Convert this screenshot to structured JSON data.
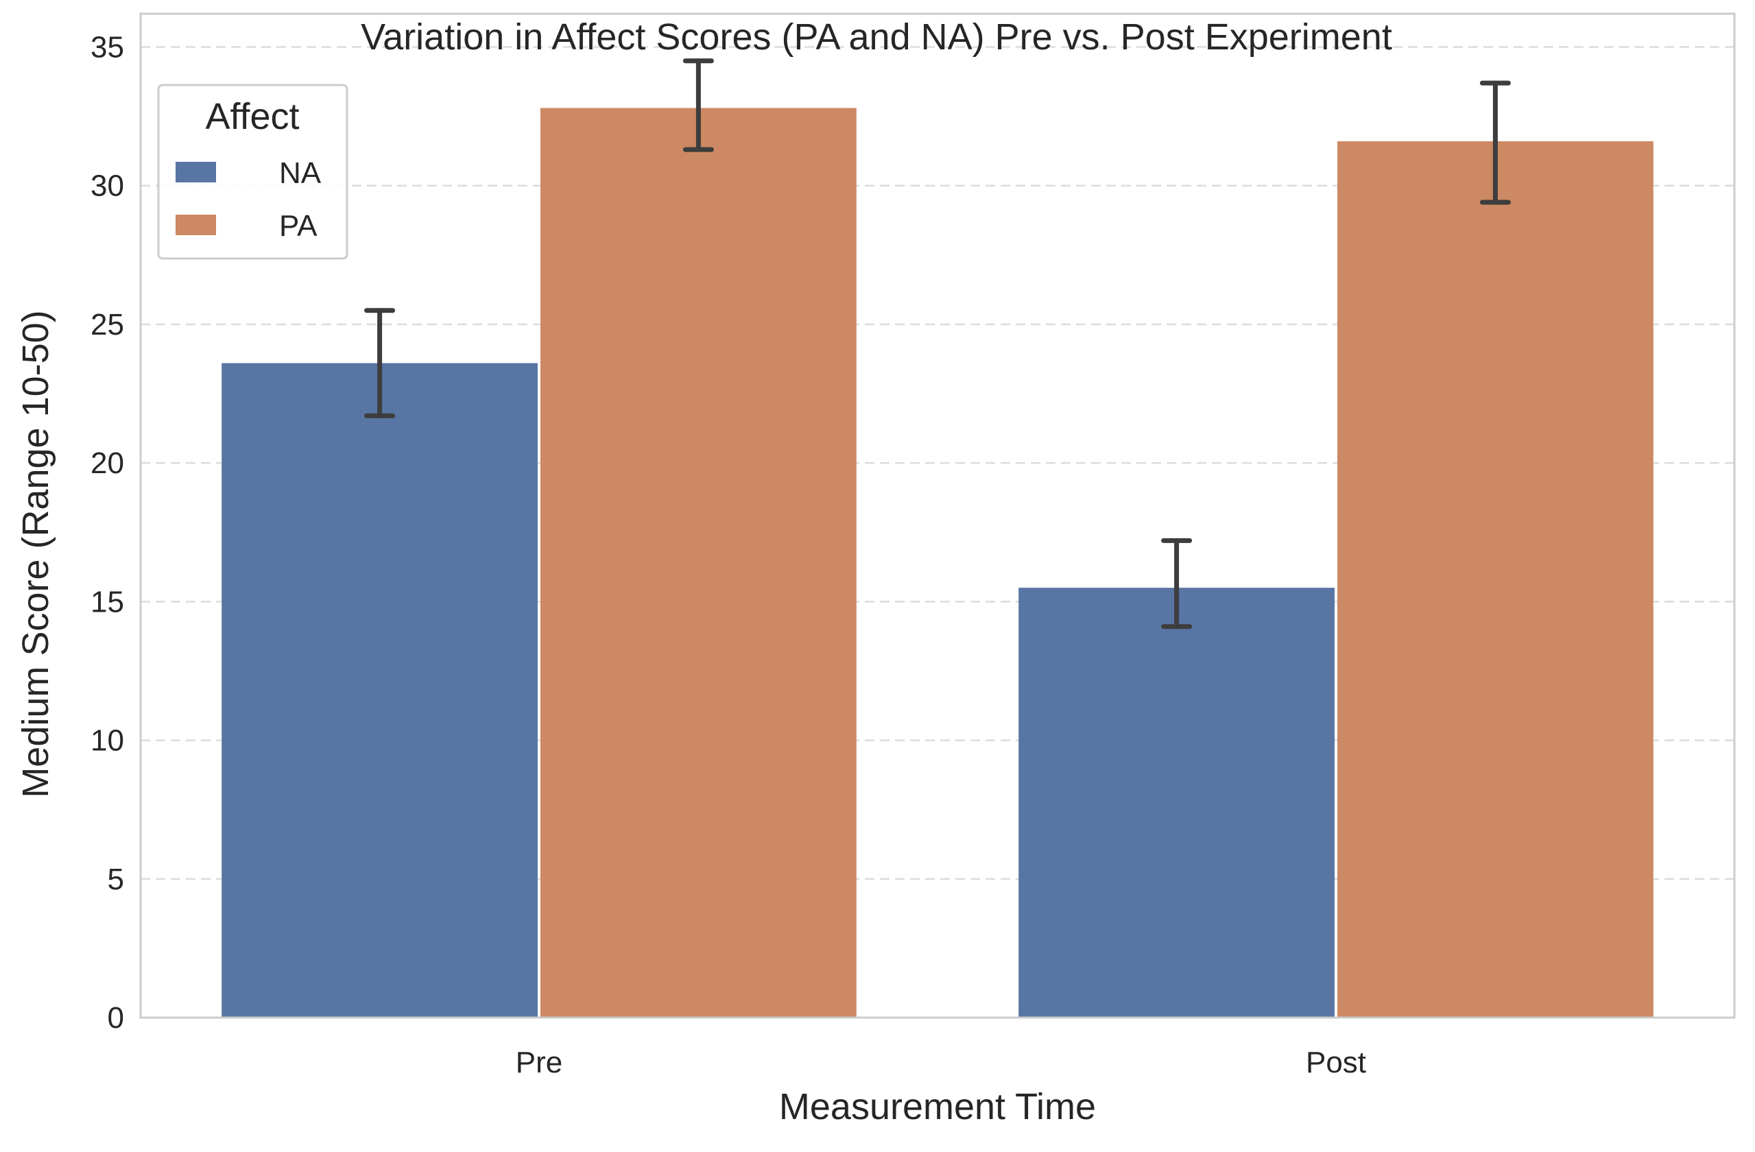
{
  "chart_data": {
    "type": "bar",
    "title": "Variation in Affect Scores (PA and NA) Pre vs. Post Experiment",
    "xlabel": "Measurement Time",
    "ylabel": "Medium Score (Range 10-50)",
    "categories": [
      "Pre",
      "Post"
    ],
    "ylim": [
      0,
      36.2
    ],
    "yticks": [
      0,
      5,
      10,
      15,
      20,
      25,
      30,
      35
    ],
    "grid": true,
    "legend": {
      "title": "Affect",
      "placement": "top-left"
    },
    "series": [
      {
        "name": "NA",
        "color": "#5875a4",
        "values": [
          23.6,
          15.5
        ],
        "error_low": [
          21.7,
          14.1
        ],
        "error_high": [
          25.5,
          17.2
        ]
      },
      {
        "name": "PA",
        "color": "#cc8963",
        "values": [
          32.8,
          31.6
        ],
        "error_low": [
          31.3,
          29.4
        ],
        "error_high": [
          34.5,
          33.7
        ]
      }
    ]
  }
}
